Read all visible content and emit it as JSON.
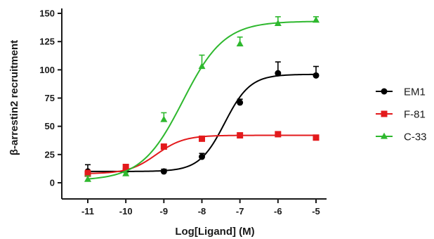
{
  "chart_data": {
    "type": "line",
    "xlabel": "Log[Ligand] (M)",
    "ylabel": "β-arrestin2 recruitment",
    "xlim": [
      -11.5,
      -4.5
    ],
    "ylim": [
      -12,
      152
    ],
    "x_ticks": [
      -11,
      -10,
      -9,
      -8,
      -7,
      -6,
      -5
    ],
    "y_ticks": [
      0,
      25,
      50,
      75,
      100,
      125,
      150
    ],
    "x_tick_labels": [
      "-11",
      "-10",
      "-9",
      "-8",
      "-7",
      "-6",
      "-5"
    ],
    "y_tick_labels": [
      "0",
      "25",
      "50",
      "75",
      "100",
      "125",
      "150"
    ],
    "legend_position": "right",
    "series": [
      {
        "name": "EM1",
        "color": "#000000",
        "marker": "circle",
        "x": [
          -11,
          -10,
          -9,
          -8,
          -7,
          -6,
          -5
        ],
        "y": [
          10,
          12,
          10,
          23,
          71,
          97,
          95
        ],
        "error": [
          6,
          4,
          2,
          3,
          3,
          10,
          8
        ],
        "fit": {
          "bottom": 10,
          "top": 96,
          "logEC50": -7.4,
          "hill": 1.3
        }
      },
      {
        "name": "F-81",
        "color": "#e31a1c",
        "marker": "square",
        "x": [
          -11,
          -10,
          -9,
          -8,
          -7,
          -6,
          -5
        ],
        "y": [
          8,
          14,
          32,
          39,
          42,
          43,
          40
        ],
        "error": [
          3,
          2,
          2,
          2,
          1,
          1,
          1
        ],
        "fit": {
          "bottom": 8,
          "top": 42,
          "logEC50": -9.2,
          "hill": 1.2
        }
      },
      {
        "name": "C-33",
        "color": "#2eb82e",
        "marker": "triangle",
        "x": [
          -11,
          -10,
          -9,
          -8,
          -7,
          -6,
          -5
        ],
        "y": [
          3,
          8,
          56,
          103,
          123,
          141,
          144
        ],
        "error": [
          3,
          1,
          6,
          10,
          6,
          6,
          3
        ],
        "fit": {
          "bottom": 2,
          "top": 143,
          "logEC50": -8.5,
          "hill": 0.8
        }
      }
    ]
  }
}
